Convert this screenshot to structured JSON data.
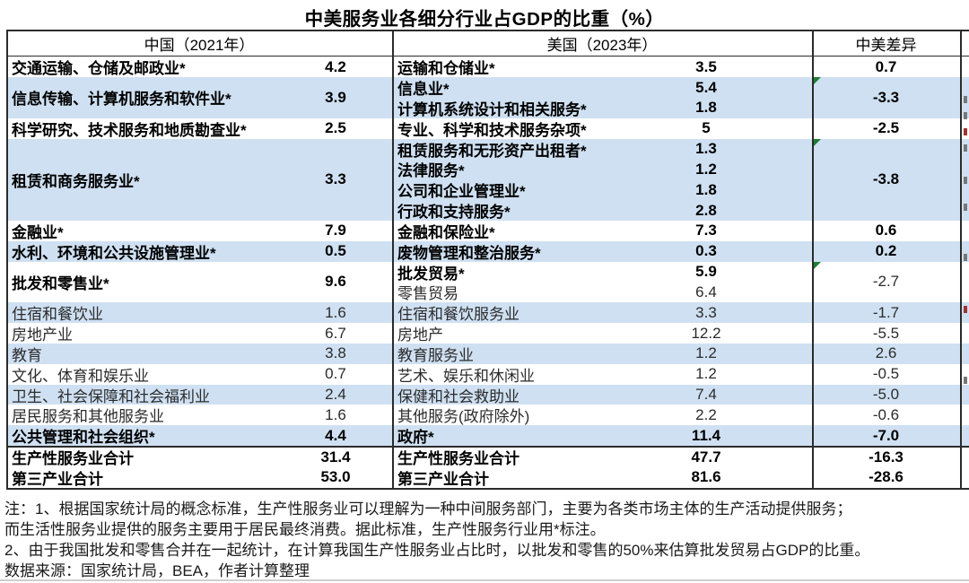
{
  "title": "中美服务业各细分行业占GDP的比重（%）",
  "header": {
    "china": "中国（2021年）",
    "us": "美国（2023年）",
    "diff": "中美差异"
  },
  "colors": {
    "stripe_blue": "#CFE0F2",
    "marker_green": "#1E7E34",
    "border_dark": "#2b2b2b"
  },
  "table": {
    "blocks": [
      {
        "shade": "white",
        "rows": 1,
        "china": {
          "label": "交通运输、仓储及邮政业*",
          "value": "4.2",
          "bold": true
        },
        "us": [
          {
            "label": "运输和仓储业*",
            "value": "3.5",
            "bold": true
          }
        ],
        "diff": {
          "value": "0.7",
          "bold": true,
          "marker": false
        }
      },
      {
        "shade": "blue",
        "rows": 2,
        "china": {
          "label": "信息传输、计算机服务和软件业*",
          "value": "3.9",
          "bold": true
        },
        "us": [
          {
            "label": "信息业*",
            "value": "5.4",
            "bold": true
          },
          {
            "label": "计算机系统设计和相关服务*",
            "value": "1.8",
            "bold": true
          }
        ],
        "diff": {
          "value": "-3.3",
          "bold": true,
          "marker": true
        }
      },
      {
        "shade": "white",
        "rows": 1,
        "china": {
          "label": "科学研究、技术服务和地质勘查业*",
          "value": "2.5",
          "bold": true
        },
        "us": [
          {
            "label": "专业、科学和技术服务杂项*",
            "value": "5",
            "bold": true
          }
        ],
        "diff": {
          "value": "-2.5",
          "bold": true,
          "marker": false
        }
      },
      {
        "shade": "blue",
        "rows": 4,
        "china": {
          "label": "租赁和商务服务业*",
          "value": "3.3",
          "bold": true
        },
        "us": [
          {
            "label": "租赁服务和无形资产出租者*",
            "value": "1.3",
            "bold": true
          },
          {
            "label": "法律服务*",
            "value": "1.2",
            "bold": true
          },
          {
            "label": "公司和企业管理业*",
            "value": "1.8",
            "bold": true
          },
          {
            "label": "行政和支持服务*",
            "value": "2.8",
            "bold": true
          }
        ],
        "diff": {
          "value": "-3.8",
          "bold": true,
          "marker": true
        }
      },
      {
        "shade": "white",
        "rows": 1,
        "china": {
          "label": "金融业*",
          "value": "7.9",
          "bold": true
        },
        "us": [
          {
            "label": "金融和保险业*",
            "value": "7.3",
            "bold": true
          }
        ],
        "diff": {
          "value": "0.6",
          "bold": true,
          "marker": false
        }
      },
      {
        "shade": "blue",
        "rows": 1,
        "china": {
          "label": "水利、环境和公共设施管理业*",
          "value": "0.5",
          "bold": true
        },
        "us": [
          {
            "label": "废物管理和整治服务*",
            "value": "0.3",
            "bold": true
          }
        ],
        "diff": {
          "value": "0.2",
          "bold": true,
          "marker": false
        }
      },
      {
        "shade": "white",
        "rows": 2,
        "china": {
          "label": "批发和零售业*",
          "value": "9.6",
          "bold": true
        },
        "us": [
          {
            "label": "批发贸易*",
            "value": "5.9",
            "bold": true
          },
          {
            "label": "零售贸易",
            "value": "6.4",
            "bold": false
          }
        ],
        "diff": {
          "value": "-2.7",
          "bold": false,
          "marker": true
        }
      },
      {
        "shade": "blue",
        "rows": 1,
        "china": {
          "label": "住宿和餐饮业",
          "value": "1.6",
          "bold": false
        },
        "us": [
          {
            "label": "住宿和餐饮服务业",
            "value": "3.3",
            "bold": false
          }
        ],
        "diff": {
          "value": "-1.7",
          "bold": false,
          "marker": false
        }
      },
      {
        "shade": "white",
        "rows": 1,
        "china": {
          "label": "房地产业",
          "value": "6.7",
          "bold": false
        },
        "us": [
          {
            "label": "房地产",
            "value": "12.2",
            "bold": false
          }
        ],
        "diff": {
          "value": "-5.5",
          "bold": false,
          "marker": false
        }
      },
      {
        "shade": "blue",
        "rows": 1,
        "china": {
          "label": "教育",
          "value": "3.8",
          "bold": false
        },
        "us": [
          {
            "label": "教育服务业",
            "value": "1.2",
            "bold": false
          }
        ],
        "diff": {
          "value": "2.6",
          "bold": false,
          "marker": false
        }
      },
      {
        "shade": "white",
        "rows": 1,
        "china": {
          "label": "文化、体育和娱乐业",
          "value": "0.7",
          "bold": false
        },
        "us": [
          {
            "label": "艺术、娱乐和休闲业",
            "value": "1.2",
            "bold": false
          }
        ],
        "diff": {
          "value": "-0.5",
          "bold": false,
          "marker": false
        }
      },
      {
        "shade": "blue",
        "rows": 1,
        "china": {
          "label": "卫生、社会保障和社会福利业",
          "value": "2.4",
          "bold": false
        },
        "us": [
          {
            "label": "保健和社会救助业",
            "value": "7.4",
            "bold": false
          }
        ],
        "diff": {
          "value": "-5.0",
          "bold": false,
          "marker": false
        }
      },
      {
        "shade": "white",
        "rows": 1,
        "china": {
          "label": "居民服务和其他服务业",
          "value": "1.6",
          "bold": false
        },
        "us": [
          {
            "label": "其他服务(政府除外)",
            "value": "2.2",
            "bold": false
          }
        ],
        "diff": {
          "value": "-0.6",
          "bold": false,
          "marker": false
        }
      },
      {
        "shade": "blue",
        "rows": 1,
        "china": {
          "label": "公共管理和社会组织*",
          "value": "4.4",
          "bold": true
        },
        "us": [
          {
            "label": "政府*",
            "value": "11.4",
            "bold": true
          }
        ],
        "diff": {
          "value": "-7.0",
          "bold": true,
          "marker": false
        }
      }
    ],
    "totals": [
      {
        "china": {
          "label": "生产性服务业合计",
          "value": "31.4"
        },
        "us": {
          "label": "生产性服务业合计",
          "value": "47.7"
        },
        "diff": "-16.3"
      },
      {
        "china": {
          "label": "第三产业合计",
          "value": "53.0"
        },
        "us": {
          "label": "第三产业合计",
          "value": "81.6"
        },
        "diff": "-28.6"
      }
    ]
  },
  "notes": [
    "注：1、根据国家统计局的概念标准，生产性服务业可以理解为一种中间服务部门，主要为各类市场主体的生产活动提供服务；",
    "而生活性服务业提供的服务主要用于居民最终消费。据此标准，生产性服务行业用*标注。",
    "2、由于我国批发和零售合并在一起统计，在计算我国生产性服务业占比时，以批发和零售的50%来估算批发贸易占GDP的比重。",
    "数据来源：国家统计局，BEA，作者计算整理"
  ]
}
